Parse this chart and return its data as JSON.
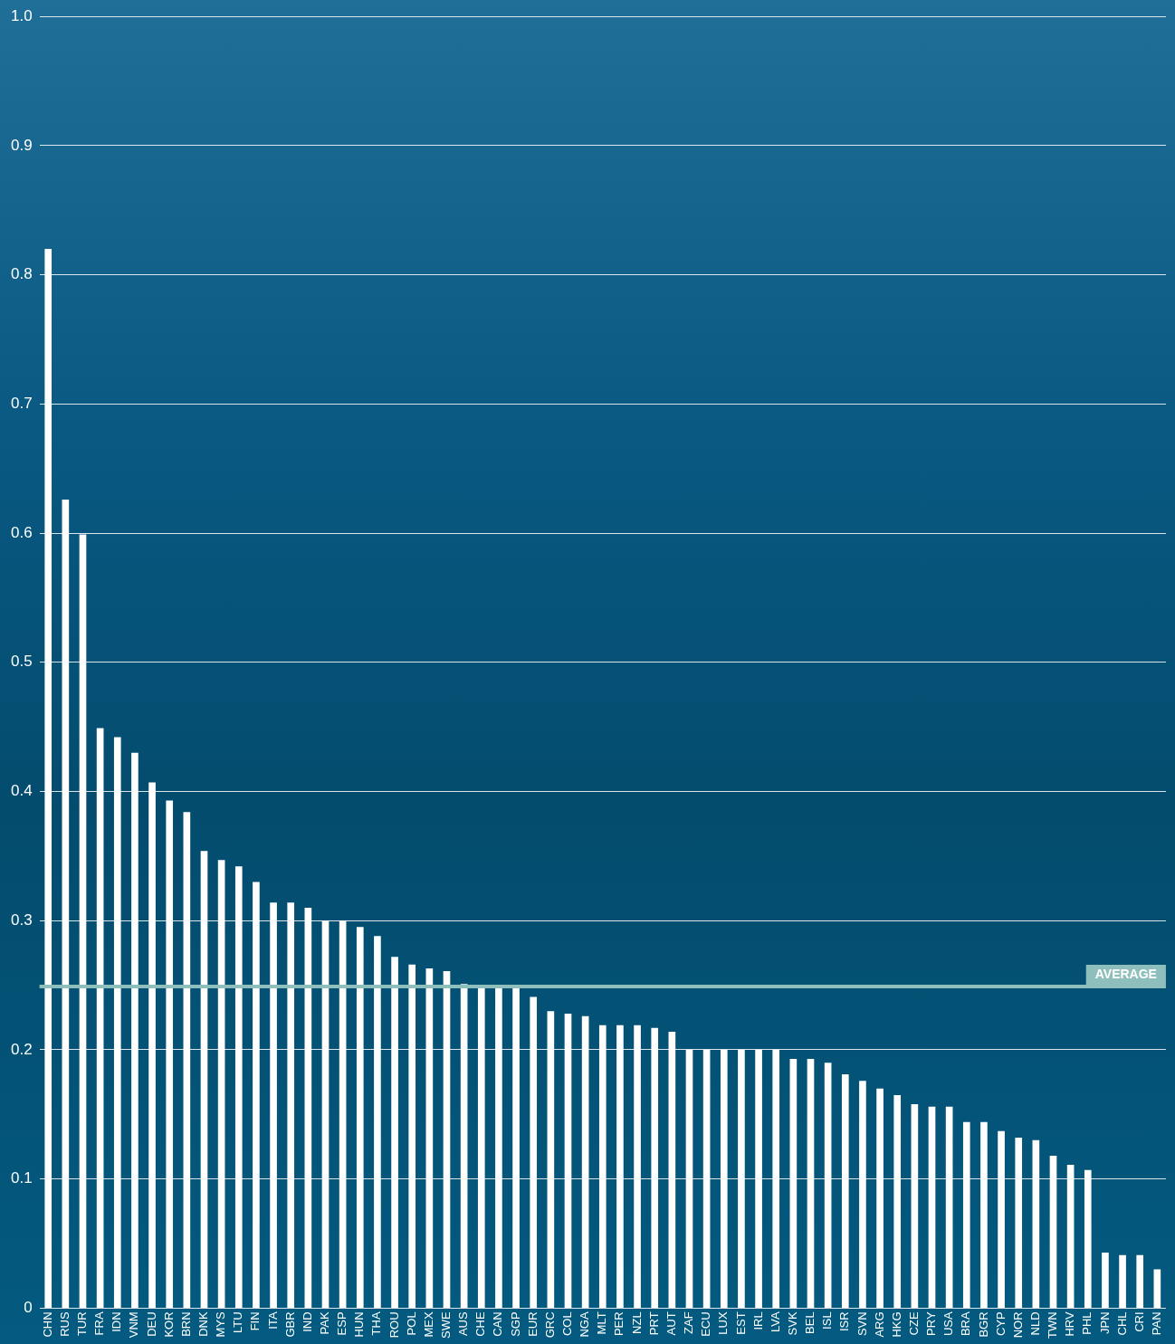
{
  "chart_data": {
    "type": "bar",
    "categories": [
      "CHN",
      "RUS",
      "TUR",
      "FRA",
      "IDN",
      "VNM",
      "DEU",
      "KOR",
      "BRN",
      "DNK",
      "MYS",
      "LTU",
      "FIN",
      "ITA",
      "GBR",
      "IND",
      "PAK",
      "ESP",
      "HUN",
      "THA",
      "ROU",
      "POL",
      "MEX",
      "SWE",
      "AUS",
      "CHE",
      "CAN",
      "SGP",
      "EUR",
      "GRC",
      "COL",
      "NGA",
      "MLT",
      "PER",
      "NZL",
      "PRT",
      "AUT",
      "ZAF",
      "ECU",
      "LUX",
      "EST",
      "IRL",
      "LVA",
      "SVK",
      "BEL",
      "ISL",
      "ISR",
      "SVN",
      "ARG",
      "HKG",
      "CZE",
      "PRY",
      "USA",
      "BRA",
      "BGR",
      "CYP",
      "NOR",
      "NLD",
      "TWN",
      "HRV",
      "PHL",
      "JPN",
      "CHL",
      "CRI",
      "PAN"
    ],
    "values": [
      0.82,
      0.626,
      0.599,
      0.449,
      0.442,
      0.43,
      0.407,
      0.393,
      0.384,
      0.354,
      0.347,
      0.342,
      0.33,
      0.314,
      0.314,
      0.31,
      0.3,
      0.3,
      0.295,
      0.288,
      0.272,
      0.266,
      0.263,
      0.261,
      0.251,
      0.248,
      0.248,
      0.248,
      0.241,
      0.23,
      0.228,
      0.226,
      0.219,
      0.219,
      0.219,
      0.217,
      0.214,
      0.2,
      0.2,
      0.2,
      0.2,
      0.2,
      0.2,
      0.193,
      0.193,
      0.19,
      0.181,
      0.176,
      0.17,
      0.165,
      0.158,
      0.156,
      0.156,
      0.144,
      0.144,
      0.137,
      0.132,
      0.13,
      0.118,
      0.111,
      0.107,
      0.043,
      0.041,
      0.041,
      0.03
    ],
    "color": "#ffffff",
    "ylim": [
      0,
      1
    ],
    "yticks": [
      0,
      {
        "value": 0.1,
        "label": "0.1"
      },
      {
        "value": 0.2,
        "label": "0.2"
      },
      {
        "value": 0.3,
        "label": "0.3"
      },
      {
        "value": 0.4,
        "label": "0.4"
      },
      {
        "value": 0.5,
        "label": "0.5"
      },
      {
        "value": 0.6,
        "label": "0.6"
      },
      {
        "value": 0.7,
        "label": "0.7"
      },
      {
        "value": 0.8,
        "label": "0.8"
      },
      {
        "value": 0.9,
        "label": "0.9"
      },
      {
        "value": 1,
        "label": "1.0"
      }
    ],
    "grid": "y",
    "ref_lines": [
      {
        "axis": "y",
        "value": 0.249,
        "label": "AVERAGE",
        "color": "#8fbfbd"
      }
    ]
  }
}
